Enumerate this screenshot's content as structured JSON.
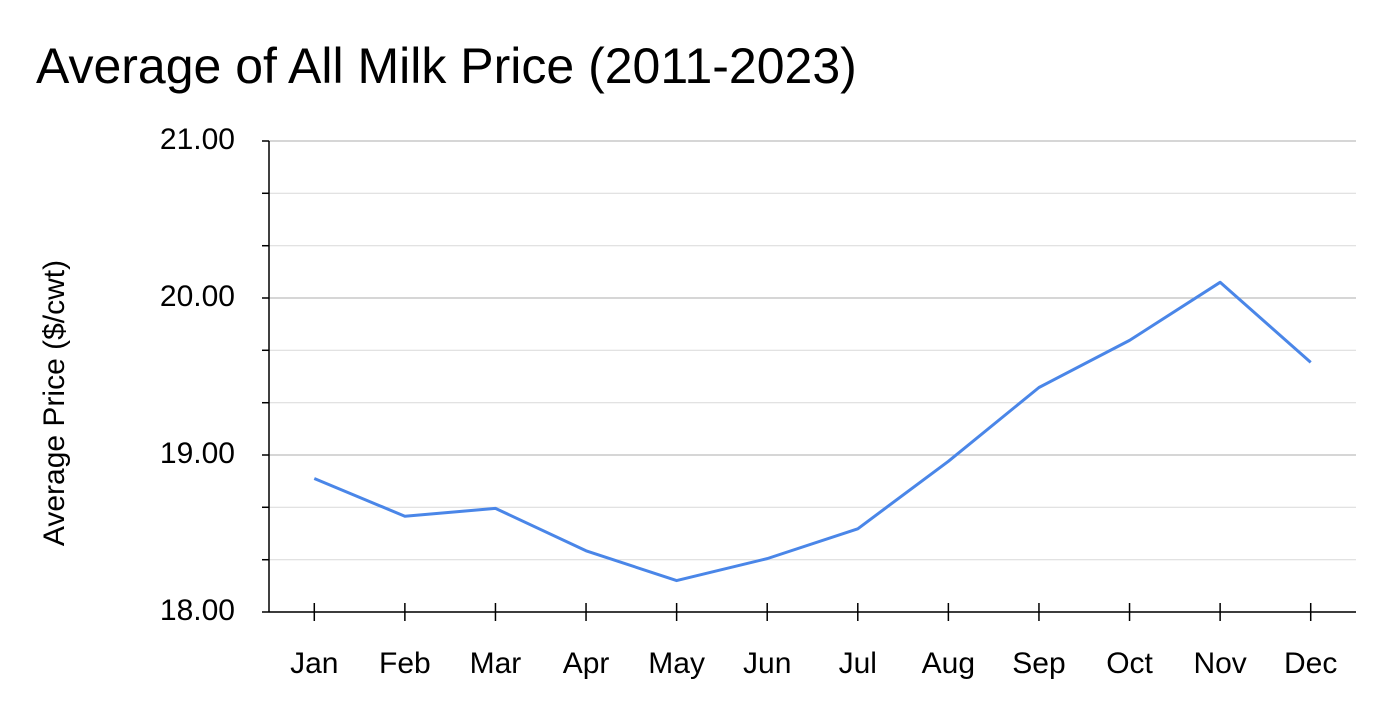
{
  "chart_data": {
    "type": "line",
    "title": "Average of All Milk Price (2011-2023)",
    "y_label": "Average Price ($/cwt)",
    "categories": [
      "Jan",
      "Feb",
      "Mar",
      "Apr",
      "May",
      "Jun",
      "Jul",
      "Aug",
      "Sep",
      "Oct",
      "Nov",
      "Dec"
    ],
    "series": [
      {
        "name": "Average Price",
        "color": "#4a86e8",
        "values": [
          18.85,
          18.61,
          18.66,
          18.39,
          18.2,
          18.34,
          18.53,
          18.96,
          19.43,
          19.73,
          20.1,
          19.59
        ]
      }
    ],
    "ylim": [
      18,
      21
    ],
    "yticks": [
      {
        "value": 18,
        "label": "18.00"
      },
      {
        "value": 19,
        "label": "19.00"
      },
      {
        "value": 20,
        "label": "20.00"
      },
      {
        "value": 21,
        "label": "21.00"
      }
    ],
    "minor_yticks": [
      18.333,
      18.667,
      19.333,
      19.667,
      20.333,
      20.667
    ],
    "grid": true
  }
}
